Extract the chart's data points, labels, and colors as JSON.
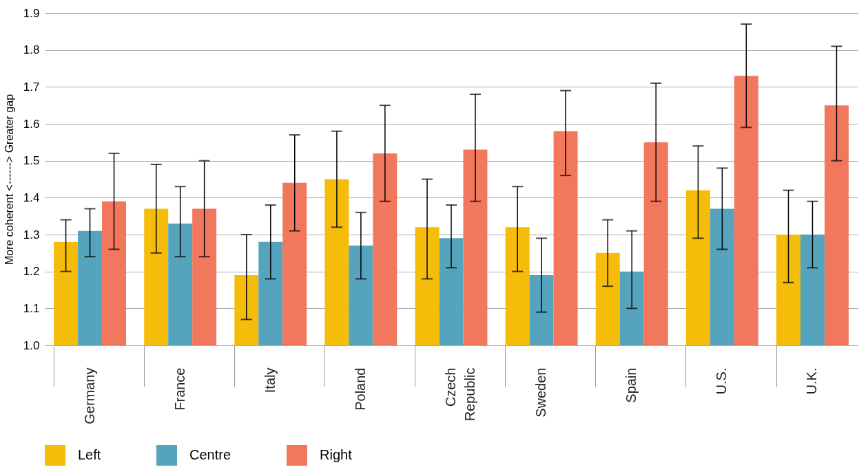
{
  "chart_data": {
    "type": "bar",
    "ylabel": "More coherent <------> Greater gap",
    "categories": [
      "Germany",
      "France",
      "Italy",
      "Poland",
      "Czech Republic",
      "Sweden",
      "Spain",
      "U.S.",
      "U.K."
    ],
    "series": [
      {
        "name": "Left",
        "color": "#f5bd0a",
        "values": [
          1.28,
          1.37,
          1.19,
          1.45,
          1.32,
          1.32,
          1.25,
          1.42,
          1.3
        ],
        "errors": [
          [
            1.2,
            1.34
          ],
          [
            1.25,
            1.49
          ],
          [
            1.07,
            1.3
          ],
          [
            1.32,
            1.58
          ],
          [
            1.18,
            1.45
          ],
          [
            1.2,
            1.43
          ],
          [
            1.16,
            1.34
          ],
          [
            1.29,
            1.54
          ],
          [
            1.17,
            1.42
          ]
        ]
      },
      {
        "name": "Centre",
        "color": "#56a3bd",
        "values": [
          1.31,
          1.33,
          1.28,
          1.27,
          1.29,
          1.19,
          1.2,
          1.37,
          1.3
        ],
        "errors": [
          [
            1.24,
            1.37
          ],
          [
            1.24,
            1.43
          ],
          [
            1.18,
            1.38
          ],
          [
            1.18,
            1.36
          ],
          [
            1.21,
            1.38
          ],
          [
            1.09,
            1.29
          ],
          [
            1.1,
            1.31
          ],
          [
            1.26,
            1.48
          ],
          [
            1.21,
            1.39
          ]
        ]
      },
      {
        "name": "Right",
        "color": "#f2785d",
        "values": [
          1.39,
          1.37,
          1.44,
          1.52,
          1.53,
          1.58,
          1.55,
          1.73,
          1.65
        ],
        "errors": [
          [
            1.26,
            1.52
          ],
          [
            1.24,
            1.5
          ],
          [
            1.31,
            1.57
          ],
          [
            1.39,
            1.65
          ],
          [
            1.39,
            1.68
          ],
          [
            1.46,
            1.69
          ],
          [
            1.39,
            1.71
          ],
          [
            1.59,
            1.87
          ],
          [
            1.5,
            1.81
          ]
        ]
      }
    ],
    "ylim": [
      1.0,
      1.9
    ],
    "yticks": [
      {
        "value": 1.0,
        "label": "1.0"
      },
      1.1,
      1.2,
      1.3,
      1.4,
      1.5,
      1.6,
      1.7,
      1.8,
      1.9
    ],
    "grid": "y",
    "legend": "bottom"
  }
}
